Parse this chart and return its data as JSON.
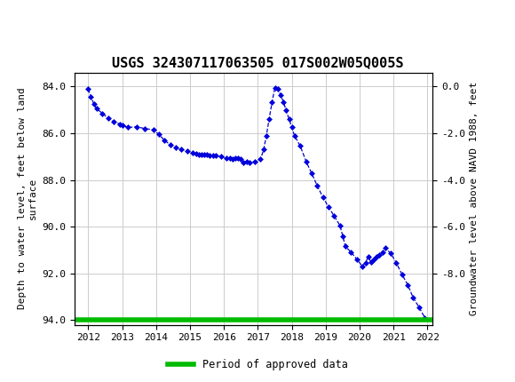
{
  "title": "USGS 324307117063505 017S002W05Q005S",
  "ylabel_left": "Depth to water level, feet below land\nsurface",
  "ylabel_right": "Groundwater level above NAVD 1988, feet",
  "ylim_left": [
    94.2,
    83.4
  ],
  "yticks_left": [
    84.0,
    86.0,
    88.0,
    90.0,
    92.0,
    94.0
  ],
  "yticks_right_vals": [
    84.0,
    86.0,
    88.0,
    90.0,
    92.0
  ],
  "yticks_right_labels": [
    "0.0",
    "-2.0",
    "-4.0",
    "-6.0",
    "-8.0"
  ],
  "xticks": [
    "2012",
    "2013",
    "2014",
    "2015",
    "2016",
    "2017",
    "2018",
    "2019",
    "2020",
    "2021",
    "2022"
  ],
  "header_bg": "#1a6b3c",
  "plot_bg": "#ffffff",
  "grid_color": "#cccccc",
  "line_color": "#0000cc",
  "marker_color": "#0000dd",
  "green_line_color": "#00bb00",
  "legend_label": "Period of approved data",
  "data_x": [
    2012.0,
    2012.08,
    2012.17,
    2012.25,
    2012.42,
    2012.58,
    2012.75,
    2012.92,
    2013.0,
    2013.17,
    2013.42,
    2013.67,
    2013.92,
    2014.08,
    2014.25,
    2014.42,
    2014.58,
    2014.75,
    2014.92,
    2015.08,
    2015.17,
    2015.25,
    2015.33,
    2015.42,
    2015.5,
    2015.58,
    2015.67,
    2015.75,
    2015.92,
    2016.08,
    2016.17,
    2016.25,
    2016.33,
    2016.42,
    2016.5,
    2016.58,
    2016.67,
    2016.75,
    2016.92,
    2017.08,
    2017.17,
    2017.25,
    2017.33,
    2017.42,
    2017.5,
    2017.58,
    2017.67,
    2017.75,
    2017.83,
    2017.92,
    2018.0,
    2018.08,
    2018.25,
    2018.42,
    2018.58,
    2018.75,
    2018.92,
    2019.08,
    2019.25,
    2019.42,
    2019.5,
    2019.58,
    2019.75,
    2019.92,
    2020.08,
    2020.17,
    2020.25,
    2020.33,
    2020.42,
    2020.5,
    2020.58,
    2020.67,
    2020.75,
    2020.92,
    2021.08,
    2021.25,
    2021.42,
    2021.58,
    2021.75,
    2021.92
  ],
  "data_y": [
    84.1,
    84.45,
    84.75,
    84.95,
    85.15,
    85.35,
    85.5,
    85.6,
    85.65,
    85.75,
    85.72,
    85.8,
    85.85,
    86.05,
    86.3,
    86.5,
    86.6,
    86.7,
    86.75,
    86.85,
    86.88,
    86.9,
    86.92,
    86.93,
    86.93,
    86.95,
    86.95,
    86.95,
    87.0,
    87.05,
    87.08,
    87.1,
    87.08,
    87.05,
    87.1,
    87.25,
    87.2,
    87.25,
    87.2,
    87.1,
    86.7,
    86.1,
    85.4,
    84.65,
    84.05,
    84.1,
    84.35,
    84.65,
    85.0,
    85.4,
    85.75,
    86.1,
    86.55,
    87.2,
    87.7,
    88.25,
    88.75,
    89.15,
    89.55,
    89.95,
    90.4,
    90.85,
    91.1,
    91.4,
    91.7,
    91.55,
    91.3,
    91.5,
    91.4,
    91.3,
    91.2,
    91.1,
    90.9,
    91.15,
    91.55,
    92.05,
    92.5,
    93.05,
    93.45,
    93.9
  ],
  "green_line_y": 94.0,
  "xlim": [
    2011.6,
    2022.15
  ],
  "title_fontsize": 11,
  "tick_fontsize": 8,
  "label_fontsize": 8
}
